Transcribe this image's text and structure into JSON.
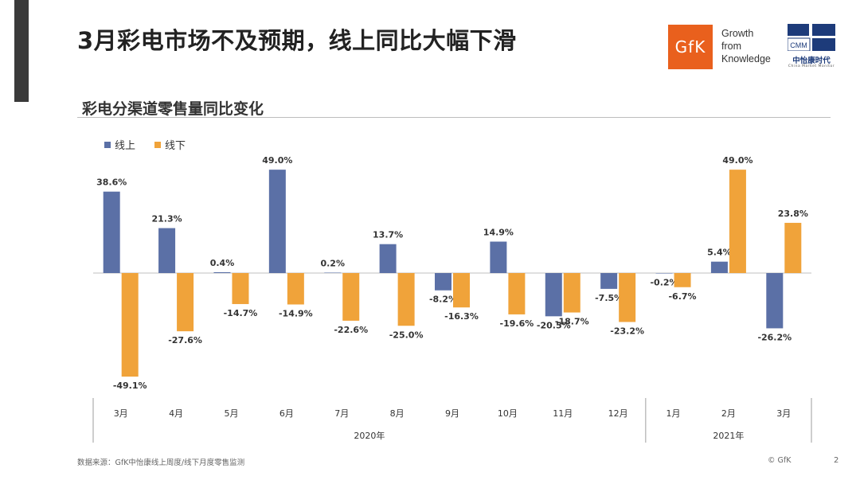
{
  "title": "3月彩电市场不及预期，线上同比大幅下滑",
  "logo": {
    "gfk_mark": "GfK",
    "tagline": [
      "Growth",
      "from",
      "Knowledge"
    ],
    "cmm_mark": "CMM",
    "cmm_name": "中怡康时代",
    "cmm_sub": "China Market Monitor"
  },
  "subtitle": "彩电分渠道零售量同比变化",
  "chart_data": {
    "type": "bar",
    "categories": [
      "3月",
      "4月",
      "5月",
      "6月",
      "7月",
      "8月",
      "9月",
      "10月",
      "11月",
      "12月",
      "1月",
      "2月",
      "3月"
    ],
    "groups": [
      {
        "label": "2020年",
        "count": 10
      },
      {
        "label": "2021年",
        "count": 3
      }
    ],
    "series": [
      {
        "name": "线上",
        "color": "#5b70a6",
        "values": [
          38.6,
          21.3,
          0.4,
          49.0,
          0.2,
          13.7,
          -8.2,
          14.9,
          -20.5,
          -7.5,
          -0.2,
          5.4,
          -26.2
        ]
      },
      {
        "name": "线下",
        "color": "#f0a33a",
        "values": [
          -49.1,
          -27.6,
          -14.7,
          -14.9,
          -22.6,
          -25.0,
          -16.3,
          -19.6,
          -18.7,
          -23.2,
          -6.7,
          49.0,
          23.8
        ]
      }
    ],
    "value_format": "%",
    "ylim": [
      -55,
      55
    ],
    "legend_position": "top-left",
    "grid": false
  },
  "footer": {
    "source": "数据来源：GfK中怡康线上周度/线下月度零售监测",
    "copyright": "© GfK",
    "page": "2"
  }
}
